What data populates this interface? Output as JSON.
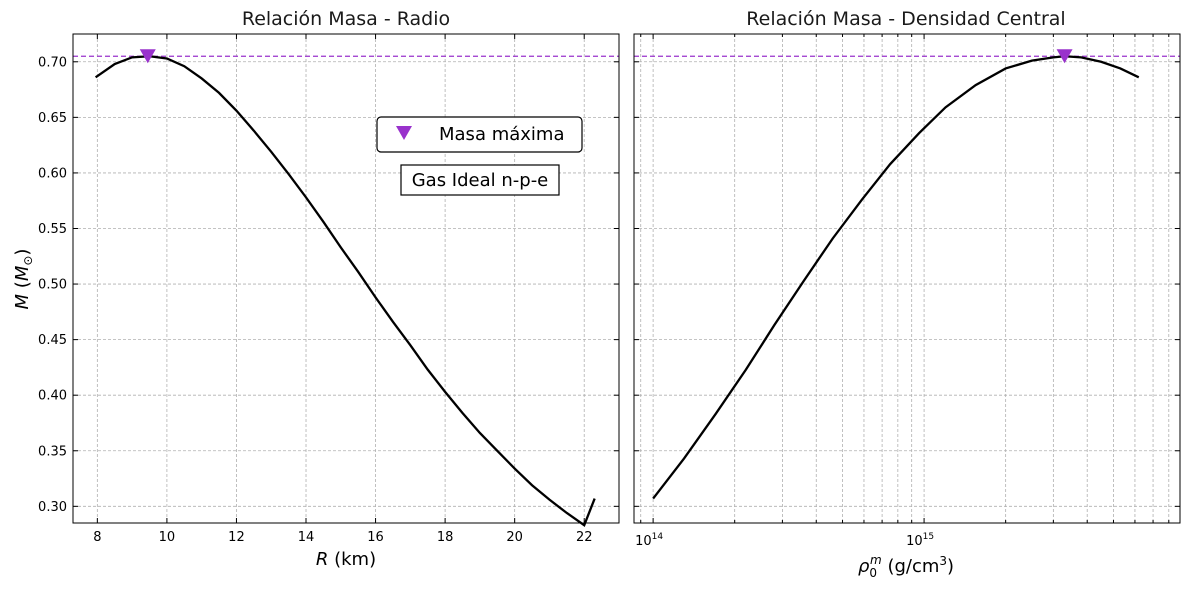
{
  "colors": {
    "curve": "#000000",
    "marker": "#9932CC",
    "refline": "#9932CC",
    "grid": "#b0b0b0"
  },
  "legend": {
    "label": "Masa máxima",
    "placement": "upper-right"
  },
  "annotation": {
    "text": "Gas Ideal n-p-e"
  },
  "shared_ylabel": "M (M☉)",
  "chart_data": [
    {
      "type": "line",
      "title": "Relación Masa - Radio",
      "xlabel": "R (km)",
      "ylabel": "M (M☉)",
      "xlim": [
        7.3,
        23.0
      ],
      "ylim": [
        0.285,
        0.725
      ],
      "xscale": "linear",
      "grid": true,
      "xticks": [
        8,
        10,
        12,
        14,
        16,
        18,
        20,
        22
      ],
      "xtick_labels": [
        "8",
        "10",
        "12",
        "14",
        "16",
        "18",
        "20",
        "22"
      ],
      "yticks": [
        0.3,
        0.35,
        0.4,
        0.45,
        0.5,
        0.55,
        0.6,
        0.65,
        0.7
      ],
      "ytick_labels": [
        "0.30",
        "0.35",
        "0.40",
        "0.45",
        "0.50",
        "0.55",
        "0.60",
        "0.65",
        "0.70"
      ],
      "series": [
        {
          "x": [
            7.95,
            8.5,
            9.0,
            9.5,
            10.0,
            10.5,
            11.0,
            11.5,
            12.0,
            12.5,
            13.0,
            13.5,
            14.0,
            14.5,
            15.0,
            15.5,
            16.0,
            16.5,
            17.0,
            17.5,
            18.0,
            18.5,
            19.0,
            19.5,
            20.0,
            20.5,
            21.0,
            21.5,
            22.0,
            22.3
          ],
          "y": [
            0.686,
            0.698,
            0.704,
            0.705,
            0.703,
            0.696,
            0.685,
            0.672,
            0.656,
            0.638,
            0.619,
            0.599,
            0.578,
            0.556,
            0.533,
            0.511,
            0.488,
            0.466,
            0.445,
            0.423,
            0.403,
            0.384,
            0.366,
            0.35,
            0.334,
            0.319,
            0.306,
            0.294,
            0.283,
            0.307
          ]
        }
      ],
      "max_marker": {
        "x": 9.45,
        "y": 0.705
      },
      "hline": 0.705
    },
    {
      "type": "line",
      "title": "Relación Masa - Densidad Central",
      "xlabel": "ρ₀ᵐ (g/cm³)",
      "ylabel": "",
      "xlim": [
        85000000000000.0,
        8800000000000000.0
      ],
      "ylim": [
        0.285,
        0.725
      ],
      "xscale": "log",
      "grid": true,
      "xticks": [
        100000000000000.0,
        1000000000000000.0
      ],
      "xtick_labels": [
        "10",
        "10"
      ],
      "xtick_exponents": [
        "14",
        "15"
      ],
      "yticks": [
        0.3,
        0.35,
        0.4,
        0.45,
        0.5,
        0.55,
        0.6,
        0.65,
        0.7
      ],
      "series": [
        {
          "x": [
            100000000000000.0,
            130000000000000.0,
            170000000000000.0,
            220000000000000.0,
            280000000000000.0,
            360000000000000.0,
            460000000000000.0,
            590000000000000.0,
            750000000000000.0,
            960000000000000.0,
            1200000000000000.0,
            1550000000000000.0,
            2000000000000000.0,
            2500000000000000.0,
            3000000000000000.0,
            3300000000000000.0,
            3800000000000000.0,
            4500000000000000.0,
            5300000000000000.0,
            6200000000000000.0
          ],
          "y": [
            0.307,
            0.343,
            0.383,
            0.423,
            0.463,
            0.503,
            0.541,
            0.576,
            0.608,
            0.636,
            0.659,
            0.679,
            0.694,
            0.701,
            0.704,
            0.705,
            0.704,
            0.7,
            0.694,
            0.686
          ]
        }
      ],
      "max_marker": {
        "x": 3300000000000000.0,
        "y": 0.705
      },
      "hline": 0.705
    }
  ]
}
